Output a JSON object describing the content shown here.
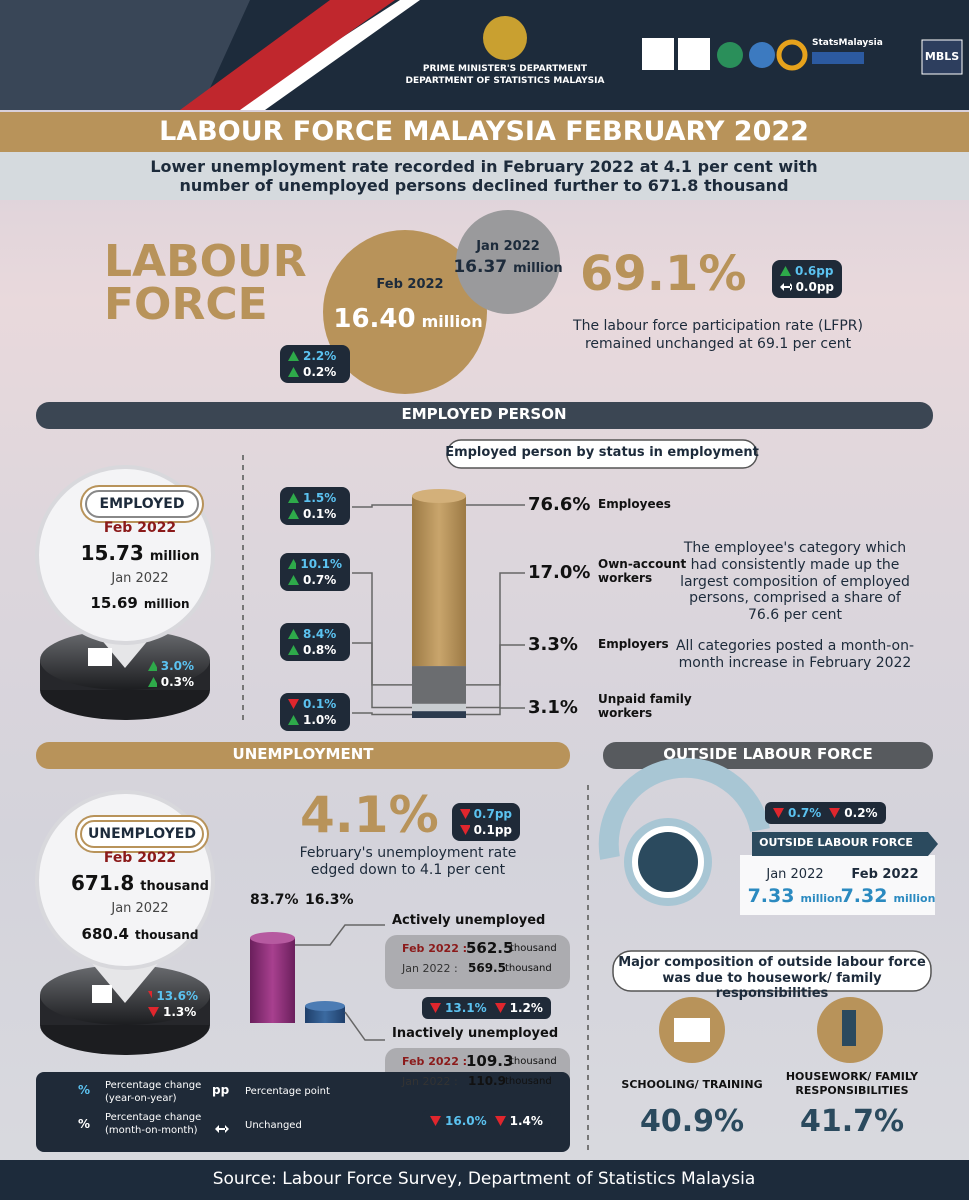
{
  "header": {
    "dept_line1": "PRIME MINISTER'S DEPARTMENT",
    "dept_line2": "DEPARTMENT OF STATISTICS MALAYSIA",
    "brand": "StatsMalaysia",
    "mbls": "MBLS"
  },
  "title": "LABOUR FORCE MALAYSIA FEBRUARY 2022",
  "subtitle": "Lower unemployment rate recorded in February 2022 at 4.1 per cent with number of unemployed persons declined further to 671.8 thousand",
  "labour_force": {
    "heading_line1": "LABOUR",
    "heading_line2": "FORCE",
    "feb_label": "Feb 2022",
    "feb_value": "16.40",
    "feb_unit": "million",
    "jan_label": "Jan 2022",
    "jan_value": "16.37",
    "jan_unit": "million",
    "change": {
      "yoy": {
        "value": "2.2%",
        "dir": "up"
      },
      "mom": {
        "value": "0.2%",
        "dir": "up"
      }
    },
    "lfpr": "69.1%",
    "lfpr_change": {
      "yoy": {
        "value": "0.6pp",
        "dir": "up"
      },
      "mom": {
        "value": "0.0pp",
        "dir": "flat"
      }
    },
    "lfpr_text": "The labour force participation rate (LFPR) remained unchanged at 69.1 per cent"
  },
  "employed": {
    "section": "EMPLOYED PERSON",
    "badge": "EMPLOYED",
    "feb_label": "Feb 2022",
    "feb_value": "15.73",
    "feb_unit": "million",
    "jan_label": "Jan 2022",
    "jan_value": "15.69",
    "jan_unit": "million",
    "change": {
      "yoy": {
        "value": "3.0%",
        "dir": "up"
      },
      "mom": {
        "value": "0.3%",
        "dir": "up"
      }
    },
    "chart_title": "Employed person by status in employment",
    "statuses": [
      {
        "name": "Employees",
        "share": "76.6%",
        "change": {
          "yoy": {
            "value": "1.5%",
            "dir": "up"
          },
          "mom": {
            "value": "0.1%",
            "dir": "up"
          }
        }
      },
      {
        "name": "Own-account workers",
        "share": "17.0%",
        "change": {
          "yoy": {
            "value": "10.1%",
            "dir": "up"
          },
          "mom": {
            "value": "0.7%",
            "dir": "up"
          }
        }
      },
      {
        "name": "Employers",
        "share": "3.3%",
        "change": {
          "yoy": {
            "value": "8.4%",
            "dir": "up"
          },
          "mom": {
            "value": "0.8%",
            "dir": "up"
          }
        }
      },
      {
        "name": "Unpaid family workers",
        "share": "3.1%",
        "change": {
          "yoy": {
            "value": "0.1%",
            "dir": "down"
          },
          "mom": {
            "value": "1.0%",
            "dir": "up"
          }
        }
      }
    ],
    "note1": "The employee's category which had consistently made up the largest composition of employed persons, comprised a share of 76.6 per cent",
    "note2": "All categories posted a month-on-month increase in February 2022"
  },
  "unemployment": {
    "section": "UNEMPLOYMENT",
    "badge": "UNEMPLOYED",
    "feb_label": "Feb 2022",
    "feb_value": "671.8",
    "feb_unit": "thousand",
    "jan_label": "Jan 2022",
    "jan_value": "680.4",
    "jan_unit": "thousand",
    "change": {
      "yoy": {
        "value": "13.6%",
        "dir": "down"
      },
      "mom": {
        "value": "1.3%",
        "dir": "down"
      }
    },
    "rate": "4.1%",
    "rate_change": {
      "yoy": {
        "value": "0.7pp",
        "dir": "down"
      },
      "mom": {
        "value": "0.1pp",
        "dir": "down"
      }
    },
    "rate_text": "February's unemployment rate edged down to 4.1 per cent",
    "active_share": "83.7%",
    "inactive_share": "16.3%",
    "groups": [
      {
        "name": "Actively unemployed",
        "feb_label": "Feb 2022 :",
        "feb_value": "562.5",
        "jan_label": "Jan 2022 :",
        "jan_value": "569.5",
        "unit": "thousand",
        "change": {
          "yoy": {
            "value": "13.1%",
            "dir": "down"
          },
          "mom": {
            "value": "1.2%",
            "dir": "down"
          }
        }
      },
      {
        "name": "Inactively unemployed",
        "feb_label": "Feb 2022 :",
        "feb_value": "109.3",
        "jan_label": "Jan 2022 :",
        "jan_value": "110.9",
        "unit": "thousand",
        "change": {
          "yoy": {
            "value": "16.0%",
            "dir": "down"
          },
          "mom": {
            "value": "1.4%",
            "dir": "down"
          }
        }
      }
    ]
  },
  "outside": {
    "section": "OUTSIDE LABOUR FORCE",
    "change": {
      "yoy": {
        "value": "0.7%",
        "dir": "down"
      },
      "mom": {
        "value": "0.2%",
        "dir": "down"
      }
    },
    "badge": "OUTSIDE LABOUR FORCE",
    "jan_label": "Jan 2022",
    "jan_value": "7.33",
    "feb_label": "Feb 2022",
    "feb_value": "7.32",
    "unit": "million",
    "composition_title": "Major composition of outside labour force was due to housework/ family responsibilities",
    "items": [
      {
        "label": "SCHOOLING/ TRAINING",
        "value": "40.9%"
      },
      {
        "label": "HOUSEWORK/ FAMILY RESPONSIBILITIES",
        "value": "41.7%"
      }
    ]
  },
  "legend": {
    "yoy_symbol": "%",
    "yoy_text": "Percentage change (year-on-year)",
    "mom_symbol": "%",
    "mom_text": "Percentage change (month-on-month)",
    "pp_symbol": "pp",
    "pp_text": "Percentage point",
    "flat_text": "Unchanged"
  },
  "source": "Source: Labour Force Survey, Department of Statistics Malaysia"
}
